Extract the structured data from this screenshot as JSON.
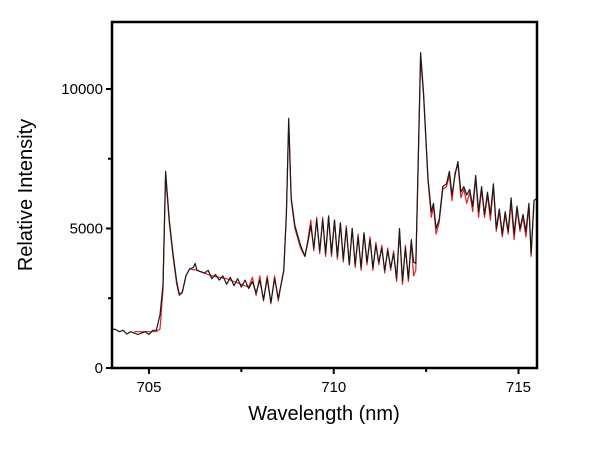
{
  "chart_data": {
    "type": "line",
    "title": "",
    "xlabel": "Wavelength (nm)",
    "ylabel": "Relative Intensity",
    "xlim": [
      704.0,
      715.5
    ],
    "ylim": [
      0,
      12400
    ],
    "xticks": [
      705,
      710,
      715
    ],
    "xtick_labels": [
      "705",
      "710",
      "715"
    ],
    "x_minor_ticks": [
      707.5,
      712.5
    ],
    "yticks": [
      0,
      5000,
      10000
    ],
    "ytick_labels": [
      "0",
      "5000",
      "10000"
    ],
    "y_minor_ticks": [
      2500,
      7500
    ],
    "grid": false,
    "legend": "none",
    "series": [
      {
        "color": "#e02020",
        "x": [
          704.6,
          704.8,
          705.0,
          705.2,
          705.3,
          705.38,
          705.45,
          705.55,
          705.65,
          705.75,
          705.82,
          705.9,
          706.0,
          706.1,
          706.3,
          706.5,
          706.7,
          706.9,
          707.1,
          707.3,
          707.5,
          707.7,
          707.8,
          707.9,
          708.0,
          708.1,
          708.2,
          708.3,
          708.4,
          708.5,
          708.6,
          708.65,
          708.72,
          708.78,
          708.85,
          708.95,
          709.1,
          709.22,
          709.3,
          709.38,
          709.46,
          709.54,
          709.62,
          709.7,
          709.78,
          709.86,
          709.94,
          710.02,
          710.1,
          710.18,
          710.26,
          710.34,
          710.42,
          710.5,
          710.58,
          710.66,
          710.74,
          710.82,
          710.9,
          710.98,
          711.06,
          711.14,
          711.22,
          711.3,
          711.38,
          711.46,
          711.54,
          711.62,
          711.7,
          711.78,
          711.86,
          711.94,
          712.02,
          712.1,
          712.16,
          712.22,
          712.27,
          712.35,
          712.43,
          712.55,
          712.64,
          712.7,
          712.77,
          712.85,
          712.95,
          713.05,
          713.13,
          713.2,
          713.28,
          713.36,
          713.44,
          713.52,
          713.6,
          713.68,
          713.76,
          713.84,
          713.92,
          714.0,
          714.08,
          714.16,
          714.24,
          714.32,
          714.4,
          714.48,
          714.56,
          714.64,
          714.72,
          714.8,
          714.88,
          714.96,
          715.04,
          715.12,
          715.2,
          715.28,
          715.34,
          715.42
        ],
        "y": [
          1300,
          1300,
          1300,
          1300,
          1400,
          2800,
          6900,
          5200,
          4000,
          3000,
          2600,
          2700,
          3300,
          3550,
          3500,
          3400,
          3300,
          3250,
          3200,
          3100,
          3000,
          2900,
          3250,
          2600,
          3300,
          2400,
          3300,
          2300,
          3300,
          2400,
          3200,
          3500,
          5600,
          8800,
          6000,
          5000,
          4300,
          4000,
          4600,
          5300,
          4200,
          5400,
          4100,
          5400,
          4000,
          5400,
          4000,
          5300,
          3900,
          5200,
          3800,
          5100,
          3700,
          5000,
          3600,
          4800,
          3500,
          4800,
          3700,
          4700,
          3500,
          4500,
          3700,
          4400,
          3400,
          4300,
          3500,
          4200,
          3100,
          4900,
          3000,
          4400,
          3100,
          4500,
          3300,
          3500,
          6300,
          11100,
          9800,
          6700,
          5400,
          5800,
          4800,
          5200,
          6400,
          6500,
          6900,
          6000,
          7000,
          7300,
          6100,
          6400,
          5900,
          6300,
          5600,
          6800,
          5400,
          6400,
          5400,
          6200,
          5300,
          6500,
          4900,
          5600,
          4700,
          5500,
          4800,
          5900,
          4600,
          5700,
          4900,
          5400,
          4700,
          5800,
          4000,
          5900
        ]
      },
      {
        "color": "#1a1a1a",
        "x": [
          704.0,
          704.1,
          704.2,
          704.3,
          704.4,
          704.5,
          704.6,
          704.7,
          704.8,
          704.9,
          705.0,
          705.1,
          705.2,
          705.3,
          705.38,
          705.45,
          705.55,
          705.65,
          705.75,
          705.82,
          705.9,
          706.0,
          706.1,
          706.2,
          706.25,
          706.3,
          706.4,
          706.5,
          706.6,
          706.7,
          706.8,
          706.9,
          707.0,
          707.1,
          707.2,
          707.3,
          707.4,
          707.5,
          707.6,
          707.7,
          707.8,
          707.9,
          708.0,
          708.1,
          708.2,
          708.3,
          708.4,
          708.5,
          708.6,
          708.65,
          708.72,
          708.78,
          708.85,
          708.95,
          709.1,
          709.22,
          709.3,
          709.38,
          709.46,
          709.54,
          709.62,
          709.7,
          709.78,
          709.86,
          709.94,
          710.02,
          710.1,
          710.18,
          710.26,
          710.34,
          710.42,
          710.5,
          710.58,
          710.66,
          710.74,
          710.82,
          710.9,
          710.98,
          711.06,
          711.14,
          711.22,
          711.3,
          711.38,
          711.46,
          711.54,
          711.62,
          711.7,
          711.78,
          711.86,
          711.94,
          712.02,
          712.1,
          712.16,
          712.22,
          712.27,
          712.35,
          712.43,
          712.55,
          712.64,
          712.7,
          712.77,
          712.85,
          712.95,
          713.05,
          713.13,
          713.2,
          713.28,
          713.36,
          713.44,
          713.52,
          713.6,
          713.68,
          713.76,
          713.84,
          713.92,
          714.0,
          714.08,
          714.16,
          714.24,
          714.32,
          714.4,
          714.48,
          714.56,
          714.64,
          714.72,
          714.8,
          714.88,
          714.96,
          715.04,
          715.12,
          715.2,
          715.28,
          715.34,
          715.42,
          715.5
        ],
        "y": [
          1400,
          1380,
          1300,
          1350,
          1220,
          1300,
          1250,
          1200,
          1250,
          1300,
          1200,
          1350,
          1350,
          1900,
          3000,
          7050,
          5300,
          4100,
          3100,
          2650,
          2700,
          3300,
          3550,
          3600,
          3750,
          3500,
          3450,
          3400,
          3500,
          3200,
          3350,
          3150,
          3300,
          3000,
          3250,
          2950,
          3200,
          2900,
          3150,
          2850,
          3100,
          2700,
          3150,
          2450,
          3200,
          2350,
          3200,
          2500,
          3150,
          3500,
          5500,
          8950,
          6100,
          5100,
          4400,
          4000,
          4500,
          5100,
          4300,
          5300,
          4200,
          5300,
          4100,
          5450,
          4100,
          5300,
          4000,
          5200,
          3900,
          5000,
          3700,
          5000,
          3700,
          4700,
          3600,
          4850,
          3800,
          4600,
          3600,
          4400,
          3800,
          4300,
          3500,
          4200,
          3600,
          4100,
          3200,
          5000,
          3100,
          4300,
          3200,
          4600,
          3800,
          3750,
          6500,
          11300,
          9900,
          6800,
          5600,
          5900,
          5000,
          5300,
          6500,
          6600,
          7050,
          6200,
          6900,
          7400,
          6300,
          6500,
          6200,
          6400,
          5800,
          6900,
          5600,
          6500,
          5500,
          6300,
          5500,
          6600,
          5000,
          5700,
          4800,
          5600,
          4900,
          6100,
          4800,
          5800,
          5000,
          5500,
          4900,
          5900,
          4100,
          6000,
          6100
        ]
      }
    ]
  }
}
